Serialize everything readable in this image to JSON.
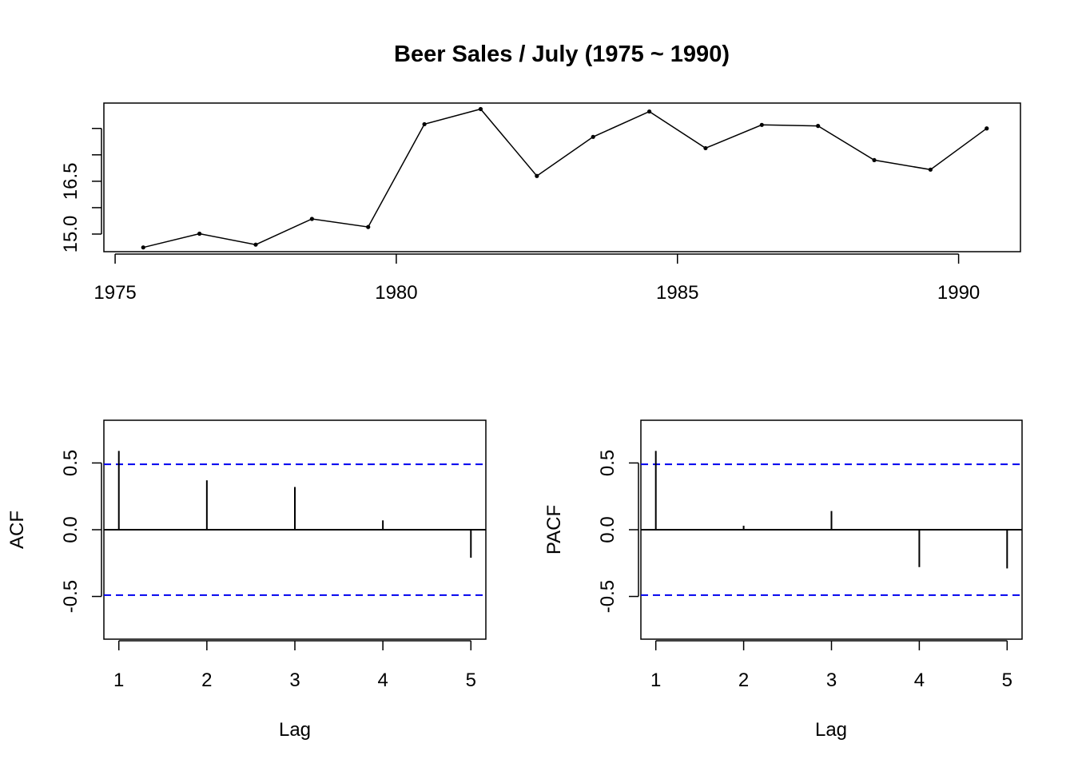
{
  "chart_data": [
    {
      "type": "line",
      "title": "Beer Sales / July (1975 ~ 1990)",
      "xlabel": "",
      "ylabel": "",
      "x": [
        1975.5,
        1976.5,
        1977.5,
        1978.5,
        1979.5,
        1980.5,
        1981.5,
        1982.5,
        1983.5,
        1984.5,
        1985.5,
        1986.5,
        1987.5,
        1988.5,
        1989.5,
        1990.5
      ],
      "y": [
        14.62,
        15.01,
        14.7,
        15.43,
        15.2,
        18.12,
        18.55,
        16.65,
        17.76,
        18.48,
        17.44,
        18.1,
        18.07,
        17.1,
        16.83,
        18.0
      ],
      "xlim": [
        1974.8,
        1991.1
      ],
      "ylim": [
        14.5,
        18.72
      ],
      "x_ticks": [
        1975,
        1980,
        1985,
        1990
      ],
      "x_tick_labels": [
        "1975",
        "1980",
        "1985",
        "1990"
      ],
      "y_ticks": [
        15.0,
        15.75,
        16.5,
        17.25,
        18.0
      ],
      "y_tick_labels": [
        "15.0",
        "",
        "16.5",
        "",
        ""
      ],
      "grid": false,
      "markers": true
    },
    {
      "type": "bar",
      "title": "",
      "xlabel": "Lag",
      "ylabel": "ACF",
      "lags": [
        1,
        2,
        3,
        4,
        5
      ],
      "values": [
        0.59,
        0.37,
        0.32,
        0.07,
        -0.21
      ],
      "ci": 0.49,
      "xlim": [
        0.83,
        5.17
      ],
      "ylim": [
        -0.82,
        0.82
      ],
      "x_ticks": [
        1,
        2,
        3,
        4,
        5
      ],
      "x_tick_labels": [
        "1",
        "2",
        "3",
        "4",
        "5"
      ],
      "y_ticks": [
        -0.5,
        0.0,
        0.5
      ],
      "y_tick_labels": [
        "-0.5",
        "0.0",
        "0.5"
      ],
      "zero_line": true,
      "ci_color": "#0000ee"
    },
    {
      "type": "bar",
      "title": "",
      "xlabel": "Lag",
      "ylabel": "PACF",
      "lags": [
        1,
        2,
        3,
        4,
        5
      ],
      "values": [
        0.59,
        0.03,
        0.14,
        -0.28,
        -0.29
      ],
      "ci": 0.49,
      "xlim": [
        0.83,
        5.17
      ],
      "ylim": [
        -0.82,
        0.82
      ],
      "x_ticks": [
        1,
        2,
        3,
        4,
        5
      ],
      "x_tick_labels": [
        "1",
        "2",
        "3",
        "4",
        "5"
      ],
      "y_ticks": [
        -0.5,
        0.0,
        0.5
      ],
      "y_tick_labels": [
        "-0.5",
        "0.0",
        "0.5"
      ],
      "zero_line": true,
      "ci_color": "#0000ee"
    }
  ]
}
